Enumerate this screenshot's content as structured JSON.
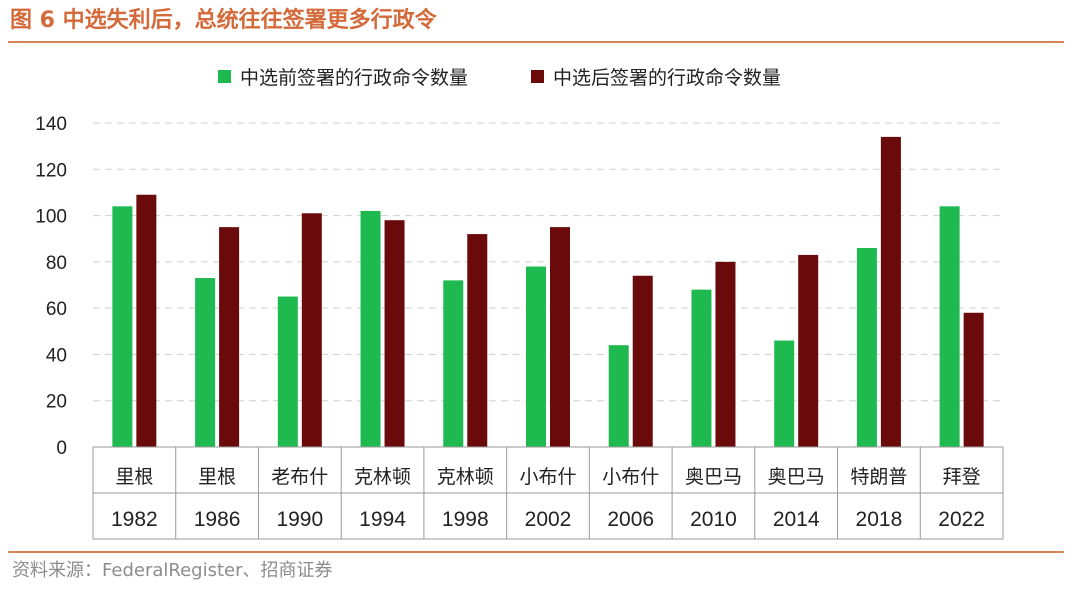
{
  "header": {
    "title": "图 6 中选失利后，总统往往签署更多行政令"
  },
  "footer": {
    "source": "资料来源：FederalRegister、招商证券"
  },
  "colors": {
    "before": "#1fba4f",
    "after": "#6b0a0a",
    "title": "#d4693a",
    "rule": "#d9825a"
  },
  "chart_data": {
    "type": "bar",
    "title": "",
    "xlabel": "",
    "ylabel": "",
    "ylim": [
      0,
      140
    ],
    "yticks": [
      0,
      20,
      40,
      60,
      80,
      100,
      120,
      140
    ],
    "grid": true,
    "legend_position": "top",
    "categories": [
      {
        "president": "里根",
        "year": "1982"
      },
      {
        "president": "里根",
        "year": "1986"
      },
      {
        "president": "老布什",
        "year": "1990"
      },
      {
        "president": "克林顿",
        "year": "1994"
      },
      {
        "president": "克林顿",
        "year": "1998"
      },
      {
        "president": "小布什",
        "year": "2002"
      },
      {
        "president": "小布什",
        "year": "2006"
      },
      {
        "president": "奥巴马",
        "year": "2010"
      },
      {
        "president": "奥巴马",
        "year": "2014"
      },
      {
        "president": "特朗普",
        "year": "2018"
      },
      {
        "president": "拜登",
        "year": "2022"
      }
    ],
    "series": [
      {
        "name": "中选前签署的行政命令数量",
        "values": [
          104,
          73,
          65,
          102,
          72,
          78,
          44,
          68,
          46,
          86,
          104
        ]
      },
      {
        "name": "中选后签署的行政命令数量",
        "values": [
          109,
          95,
          101,
          98,
          92,
          95,
          74,
          80,
          83,
          134,
          58
        ]
      }
    ]
  }
}
